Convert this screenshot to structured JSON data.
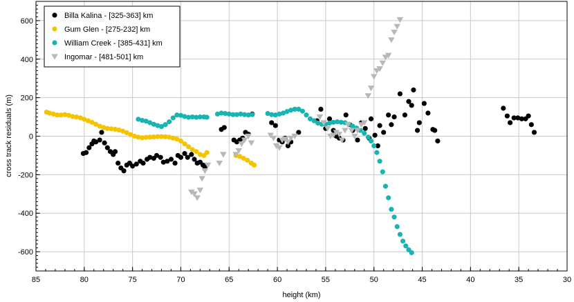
{
  "chart_data": {
    "type": "scatter",
    "xlabel": "height (km)",
    "ylabel": "cross track residuals (m)",
    "xlim": [
      85,
      30
    ],
    "ylim": [
      -700,
      700
    ],
    "x_ticks": [
      85,
      80,
      75,
      70,
      65,
      60,
      55,
      50,
      45,
      40,
      35,
      30
    ],
    "y_ticks": [
      -600,
      -400,
      -200,
      0,
      200,
      400,
      600
    ],
    "grid": true,
    "legend_position": "top-left",
    "series": [
      {
        "name": "Billa Kalina - [325-363] km",
        "color": "#000000",
        "marker": "circle",
        "points": [
          [
            80.1,
            -90
          ],
          [
            79.8,
            -85
          ],
          [
            79.5,
            -60
          ],
          [
            79.2,
            -40
          ],
          [
            79.0,
            -25
          ],
          [
            78.8,
            -30
          ],
          [
            78.4,
            -20
          ],
          [
            78.2,
            20
          ],
          [
            77.9,
            -35
          ],
          [
            77.6,
            -60
          ],
          [
            77.3,
            -80
          ],
          [
            77.0,
            -95
          ],
          [
            76.8,
            -80
          ],
          [
            76.5,
            -140
          ],
          [
            76.2,
            -165
          ],
          [
            75.9,
            -180
          ],
          [
            75.6,
            -150
          ],
          [
            75.3,
            -140
          ],
          [
            75.0,
            -155
          ],
          [
            74.6,
            -145
          ],
          [
            74.2,
            -130
          ],
          [
            73.9,
            -140
          ],
          [
            73.5,
            -120
          ],
          [
            73.2,
            -110
          ],
          [
            72.8,
            -115
          ],
          [
            72.5,
            -100
          ],
          [
            72.1,
            -110
          ],
          [
            71.8,
            -135
          ],
          [
            71.4,
            -130
          ],
          [
            71.0,
            -120
          ],
          [
            70.6,
            -140
          ],
          [
            70.3,
            -100
          ],
          [
            70.0,
            -110
          ],
          [
            69.6,
            -90
          ],
          [
            69.3,
            -110
          ],
          [
            68.9,
            -95
          ],
          [
            68.6,
            -120
          ],
          [
            68.3,
            -140
          ],
          [
            68.0,
            -135
          ],
          [
            67.7,
            -150
          ],
          [
            67.5,
            -160
          ],
          [
            65.8,
            35
          ],
          [
            65.5,
            45
          ],
          [
            64.5,
            -20
          ],
          [
            64.2,
            -30
          ],
          [
            63.9,
            -20
          ],
          [
            63.6,
            -10
          ],
          [
            63.3,
            20
          ],
          [
            63.0,
            10
          ],
          [
            62.6,
            115
          ],
          [
            60.6,
            70
          ],
          [
            60.2,
            55
          ],
          [
            59.8,
            -20
          ],
          [
            59.5,
            -30
          ],
          [
            59.2,
            -10
          ],
          [
            58.9,
            -50
          ],
          [
            58.6,
            -30
          ],
          [
            57.8,
            20
          ],
          [
            55.9,
            80
          ],
          [
            55.5,
            140
          ],
          [
            55.0,
            40
          ],
          [
            54.6,
            90
          ],
          [
            54.2,
            30
          ],
          [
            53.9,
            0
          ],
          [
            53.6,
            -10
          ],
          [
            53.2,
            -20
          ],
          [
            52.9,
            110
          ],
          [
            52.5,
            60
          ],
          [
            52.2,
            30
          ],
          [
            51.7,
            -20
          ],
          [
            51.3,
            70
          ],
          [
            50.9,
            40
          ],
          [
            50.5,
            -10
          ],
          [
            50.3,
            90
          ],
          [
            49.9,
            5
          ],
          [
            49.6,
            -50
          ],
          [
            49.4,
            55
          ],
          [
            49.0,
            20
          ],
          [
            48.5,
            110
          ],
          [
            48.2,
            60
          ],
          [
            47.9,
            100
          ],
          [
            47.3,
            220
          ],
          [
            46.8,
            110
          ],
          [
            46.4,
            180
          ],
          [
            46.1,
            160
          ],
          [
            45.9,
            240
          ],
          [
            45.5,
            30
          ],
          [
            45.3,
            70
          ],
          [
            44.8,
            170
          ],
          [
            44.4,
            120
          ],
          [
            43.9,
            35
          ],
          [
            43.4,
            -25
          ],
          [
            43.7,
            30
          ],
          [
            36.6,
            145
          ],
          [
            36.2,
            105
          ],
          [
            35.9,
            70
          ],
          [
            35.5,
            95
          ],
          [
            35.1,
            95
          ],
          [
            34.7,
            90
          ],
          [
            34.3,
            90
          ],
          [
            34.0,
            105
          ],
          [
            33.7,
            60
          ],
          [
            33.4,
            20
          ]
        ]
      },
      {
        "name": "Gum Glen - [275-232] km",
        "color": "#f5c400",
        "marker": "circle",
        "points": [
          [
            83.9,
            125
          ],
          [
            83.6,
            120
          ],
          [
            83.2,
            115
          ],
          [
            82.8,
            110
          ],
          [
            82.4,
            110
          ],
          [
            82.0,
            112
          ],
          [
            81.6,
            108
          ],
          [
            81.2,
            102
          ],
          [
            80.8,
            100
          ],
          [
            80.4,
            95
          ],
          [
            80.0,
            88
          ],
          [
            79.6,
            80
          ],
          [
            79.2,
            72
          ],
          [
            78.8,
            62
          ],
          [
            78.4,
            52
          ],
          [
            78.0,
            45
          ],
          [
            77.6,
            40
          ],
          [
            77.2,
            38
          ],
          [
            76.8,
            36
          ],
          [
            76.4,
            32
          ],
          [
            76.0,
            26
          ],
          [
            75.6,
            18
          ],
          [
            75.2,
            8
          ],
          [
            74.8,
            0
          ],
          [
            74.4,
            -5
          ],
          [
            74.0,
            -8
          ],
          [
            73.6,
            -6
          ],
          [
            73.2,
            -5
          ],
          [
            72.8,
            -4
          ],
          [
            72.4,
            -2
          ],
          [
            72.0,
            -2
          ],
          [
            71.6,
            -3
          ],
          [
            71.2,
            -5
          ],
          [
            70.8,
            -10
          ],
          [
            70.4,
            -15
          ],
          [
            70.0,
            -25
          ],
          [
            69.6,
            -40
          ],
          [
            69.2,
            -55
          ],
          [
            68.8,
            -70
          ],
          [
            68.4,
            -80
          ],
          [
            68.0,
            -95
          ],
          [
            67.6,
            -100
          ],
          [
            67.3,
            -85
          ],
          [
            64.3,
            -100
          ],
          [
            63.9,
            -105
          ],
          [
            63.5,
            -115
          ],
          [
            63.1,
            -125
          ],
          [
            62.7,
            -140
          ],
          [
            62.4,
            -150
          ]
        ]
      },
      {
        "name": "William Creek - [385-431] km",
        "color": "#17b5b2",
        "marker": "circle",
        "points": [
          [
            74.4,
            88
          ],
          [
            74.0,
            82
          ],
          [
            73.6,
            78
          ],
          [
            73.2,
            70
          ],
          [
            72.8,
            62
          ],
          [
            72.4,
            55
          ],
          [
            72.0,
            50
          ],
          [
            71.6,
            60
          ],
          [
            71.2,
            75
          ],
          [
            70.8,
            95
          ],
          [
            70.4,
            110
          ],
          [
            70.0,
            108
          ],
          [
            69.6,
            102
          ],
          [
            69.2,
            98
          ],
          [
            68.8,
            100
          ],
          [
            68.4,
            98
          ],
          [
            68.0,
            100
          ],
          [
            67.6,
            100
          ],
          [
            67.3,
            98
          ],
          [
            66.2,
            115
          ],
          [
            65.8,
            120
          ],
          [
            65.4,
            118
          ],
          [
            65.0,
            115
          ],
          [
            64.6,
            112
          ],
          [
            64.2,
            112
          ],
          [
            63.8,
            115
          ],
          [
            63.4,
            112
          ],
          [
            63.0,
            110
          ],
          [
            62.6,
            112
          ],
          [
            61.0,
            118
          ],
          [
            60.6,
            112
          ],
          [
            60.2,
            110
          ],
          [
            59.8,
            115
          ],
          [
            59.4,
            120
          ],
          [
            59.0,
            128
          ],
          [
            58.6,
            135
          ],
          [
            58.2,
            140
          ],
          [
            57.8,
            140
          ],
          [
            57.4,
            130
          ],
          [
            57.0,
            110
          ],
          [
            56.6,
            90
          ],
          [
            56.2,
            80
          ],
          [
            55.8,
            68
          ],
          [
            55.4,
            62
          ],
          [
            55.0,
            62
          ],
          [
            54.6,
            68
          ],
          [
            54.2,
            72
          ],
          [
            53.8,
            75
          ],
          [
            53.4,
            72
          ],
          [
            53.0,
            70
          ],
          [
            52.6,
            62
          ],
          [
            52.2,
            52
          ],
          [
            51.8,
            42
          ],
          [
            51.4,
            30
          ],
          [
            51.0,
            15
          ],
          [
            50.6,
            -5
          ],
          [
            50.3,
            -25
          ],
          [
            50.0,
            -50
          ],
          [
            49.7,
            -85
          ],
          [
            49.4,
            -130
          ],
          [
            49.1,
            -185
          ],
          [
            48.8,
            -260
          ],
          [
            48.5,
            -320
          ],
          [
            48.2,
            -380
          ],
          [
            47.9,
            -420
          ],
          [
            47.6,
            -470
          ],
          [
            47.3,
            -510
          ],
          [
            47.0,
            -545
          ],
          [
            46.7,
            -570
          ],
          [
            46.4,
            -590
          ],
          [
            46.1,
            -605
          ]
        ]
      },
      {
        "name": "Ingomar - [481-501] km",
        "color": "#b8b8b8",
        "marker": "triangle-down",
        "points": [
          [
            68.9,
            -290
          ],
          [
            68.6,
            -300
          ],
          [
            68.3,
            -320
          ],
          [
            68.0,
            -280
          ],
          [
            67.8,
            -220
          ],
          [
            67.5,
            -180
          ],
          [
            67.2,
            -150
          ],
          [
            66.0,
            -140
          ],
          [
            65.6,
            -95
          ],
          [
            64.3,
            -95
          ],
          [
            64.0,
            -75
          ],
          [
            63.7,
            -40
          ],
          [
            63.4,
            -20
          ],
          [
            63.0,
            0
          ],
          [
            62.7,
            -35
          ],
          [
            60.7,
            5
          ],
          [
            60.4,
            -10
          ],
          [
            60.1,
            -50
          ],
          [
            59.8,
            -60
          ],
          [
            59.5,
            -20
          ],
          [
            59.2,
            -15
          ],
          [
            58.9,
            -30
          ],
          [
            58.6,
            -10
          ],
          [
            58.2,
            0
          ],
          [
            55.6,
            100
          ],
          [
            55.2,
            70
          ],
          [
            54.8,
            40
          ],
          [
            54.5,
            0
          ],
          [
            54.2,
            5
          ],
          [
            53.9,
            20
          ],
          [
            53.6,
            10
          ],
          [
            53.3,
            -20
          ],
          [
            53.0,
            30
          ],
          [
            52.7,
            60
          ],
          [
            52.3,
            30
          ],
          [
            52.0,
            0
          ],
          [
            51.7,
            30
          ],
          [
            51.3,
            60
          ],
          [
            51.0,
            70
          ],
          [
            50.6,
            210
          ],
          [
            50.3,
            250
          ],
          [
            50.0,
            310
          ],
          [
            49.7,
            340
          ],
          [
            49.4,
            350
          ],
          [
            49.1,
            380
          ],
          [
            48.8,
            410
          ],
          [
            48.5,
            420
          ],
          [
            48.2,
            500
          ],
          [
            47.9,
            540
          ],
          [
            47.6,
            570
          ],
          [
            47.3,
            605
          ]
        ]
      }
    ]
  }
}
